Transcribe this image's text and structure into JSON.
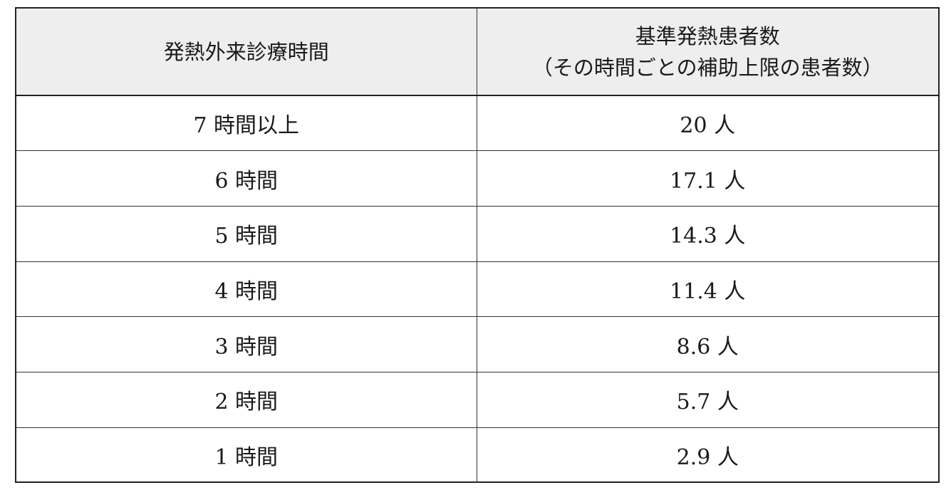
{
  "table": {
    "headers": {
      "hours": "発熱外来診療時間",
      "patients_line1": "基準発熱患者数",
      "patients_line2": "（その時間ごとの補助上限の患者数）"
    },
    "rows": [
      {
        "hours": "7 時間以上",
        "patients": "20 人"
      },
      {
        "hours": "6 時間",
        "patients": "17.1 人"
      },
      {
        "hours": "5 時間",
        "patients": "14.3 人"
      },
      {
        "hours": "4 時間",
        "patients": "11.4 人"
      },
      {
        "hours": "3 時間",
        "patients": "8.6 人"
      },
      {
        "hours": "2 時間",
        "patients": "5.7 人"
      },
      {
        "hours": "1 時間",
        "patients": "2.9 人"
      }
    ]
  }
}
